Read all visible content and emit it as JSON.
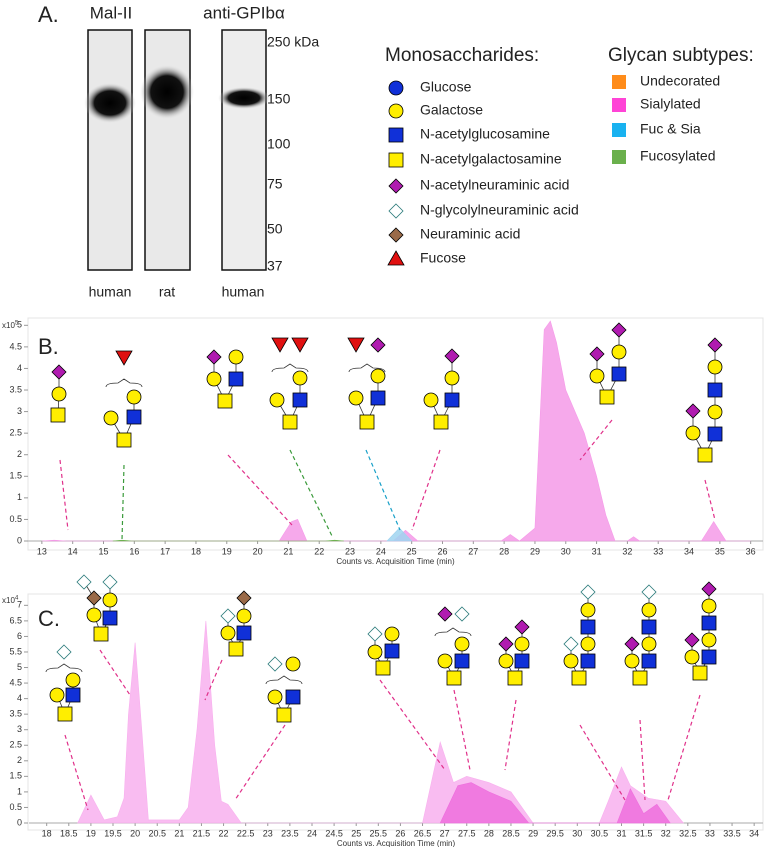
{
  "panel_labels": [
    "A.",
    "B.",
    "C."
  ],
  "blot": {
    "lanes": [
      {
        "label": "Mal-II",
        "samples": [
          "human",
          "rat"
        ]
      },
      {
        "label": "anti-GPIbα",
        "samples": [
          "human"
        ]
      }
    ],
    "markers": [
      "250 kDa",
      "150",
      "100",
      "75",
      "50",
      "37"
    ]
  },
  "legend": {
    "monosaccharides": {
      "title": "Monosaccharides:",
      "items": [
        "Glucose",
        "Galactose",
        "N-acetylglucosamine",
        "N-acetylgalactosamine",
        "N-acetylneuraminic acid",
        "N-glycolylneuraminic acid",
        "Neuraminic acid",
        "Fucose"
      ]
    },
    "glycan_subtypes": {
      "title": "Glycan subtypes:",
      "items": [
        {
          "label": "Undecorated",
          "color": "#ff8c1a"
        },
        {
          "label": "Sialylated",
          "color": "#ff44d6"
        },
        {
          "label": "Fuc & Sia",
          "color": "#19b2f0"
        },
        {
          "label": "Fucosylated",
          "color": "#6ab04c"
        }
      ]
    }
  },
  "chart_data": [
    {
      "type": "area",
      "x_label": "Counts vs. Acquisition Time (min)",
      "y_unit": "x10",
      "y_unit_exponent": "5",
      "xlim": [
        12.55,
        36.4
      ],
      "ylim": [
        0,
        5.1
      ],
      "xticks": [
        13,
        14,
        15,
        16,
        17,
        18,
        19,
        20,
        21,
        22,
        23,
        24,
        25,
        26,
        27,
        28,
        29,
        30,
        31,
        32,
        33,
        34,
        35,
        36
      ],
      "yticks": [
        0,
        0.5,
        1,
        1.5,
        2,
        2.5,
        3,
        3.5,
        4,
        4.5,
        5
      ],
      "series": [
        {
          "color": "#f59ae8",
          "x": [
            13,
            13.4,
            13.8,
            20.7,
            21.1,
            21.3,
            21.6,
            24.4,
            24.8,
            25.2,
            27.9,
            28.2,
            28.5,
            29.0,
            29.3,
            29.5,
            29.7,
            30.0,
            30.3,
            30.6,
            31.0,
            31.3,
            31.6,
            32.0,
            32.2,
            32.4,
            34.4,
            34.8,
            35.2,
            36
          ],
          "values": [
            0,
            0.02,
            0,
            0,
            0.45,
            0.5,
            0,
            0,
            0.25,
            0,
            0,
            0.15,
            0,
            0.3,
            4.9,
            5.1,
            4.6,
            3.5,
            3.0,
            2.5,
            1.5,
            0.6,
            0,
            0,
            0.1,
            0,
            0,
            0.45,
            0,
            0
          ]
        },
        {
          "color": "#9fd3f0",
          "x": [
            24.2,
            24.6,
            25.0
          ],
          "values": [
            0,
            0.3,
            0
          ]
        },
        {
          "color": "#6ab04c",
          "x": [
            15.3,
            15.6,
            15.9,
            22.2,
            22.5,
            22.8
          ],
          "values": [
            0,
            0.02,
            0,
            0,
            0.02,
            0
          ]
        }
      ]
    },
    {
      "type": "area",
      "x_label": "Counts vs. Acquisition Time (min)",
      "y_unit": "x10",
      "y_unit_exponent": "4",
      "xlim": [
        17.6,
        34.2
      ],
      "ylim": [
        0,
        7.3
      ],
      "xticks": [
        18,
        18.5,
        19,
        19.5,
        20,
        20.5,
        21,
        21.5,
        22,
        22.5,
        23,
        23.5,
        24,
        24.5,
        25,
        25.5,
        26,
        26.5,
        27,
        27.5,
        28,
        28.5,
        29,
        29.5,
        30,
        30.5,
        31,
        31.5,
        32,
        32.5,
        33,
        33.5,
        34
      ],
      "yticks": [
        0,
        0.5,
        1,
        1.5,
        2,
        2.5,
        3,
        3.5,
        4,
        4.5,
        5,
        5.5,
        6,
        6.5,
        7
      ],
      "series": [
        {
          "color": "#f8b0ee",
          "x": [
            18.7,
            19.0,
            19.3,
            19.6,
            19.75,
            19.85,
            20.0,
            20.15,
            20.3,
            21.0,
            21.2,
            21.4,
            21.6,
            21.8,
            21.95,
            22.1,
            22.4,
            26.5,
            26.9,
            27.2,
            27.5,
            28.0,
            28.5,
            29.0,
            30.5,
            30.7,
            31.0,
            31.2,
            31.4,
            31.6,
            32.0,
            32.4
          ],
          "values": [
            0,
            0.9,
            0.1,
            0.2,
            0.8,
            3.5,
            5.8,
            3.0,
            0.1,
            0.1,
            0.5,
            3.0,
            6.5,
            2.5,
            0.7,
            0.6,
            0,
            0,
            2.6,
            1.3,
            1.5,
            1.3,
            1.0,
            0,
            0,
            0.7,
            1.8,
            1.2,
            1.0,
            0.8,
            0.7,
            0
          ]
        },
        {
          "color": "#ee6fdd",
          "x": [
            26.9,
            27.3,
            27.6,
            28.0,
            28.5,
            28.9,
            30.9,
            31.2,
            31.5,
            31.8,
            32.1
          ],
          "values": [
            0,
            1.2,
            1.3,
            1.0,
            0.7,
            0,
            0,
            1.1,
            0.3,
            0.6,
            0
          ]
        }
      ]
    }
  ]
}
